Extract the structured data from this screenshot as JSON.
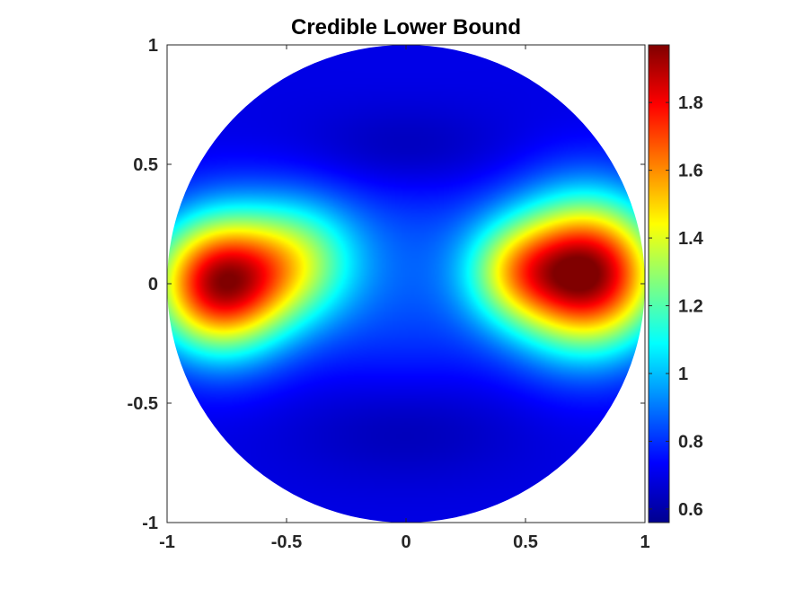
{
  "chart_data": {
    "type": "heatmap",
    "title": "Credible Lower Bound",
    "xlabel": "",
    "ylabel": "",
    "xlim": [
      -1,
      1
    ],
    "ylim": [
      -1,
      1
    ],
    "domain_shape": "unit-disk",
    "grid": false,
    "x_ticks": [
      -1,
      -0.5,
      0,
      0.5,
      1
    ],
    "y_ticks": [
      -1,
      -0.5,
      0,
      0.5,
      1
    ],
    "x_tick_labels": [
      "-1",
      "-0.5",
      "0",
      "0.5",
      "1"
    ],
    "y_tick_labels": [
      "-1",
      "-0.5",
      "0",
      "0.5",
      "1"
    ],
    "colormap": "jet",
    "colorbar": {
      "location": "right",
      "clim": [
        0.56,
        1.97
      ],
      "ticks": [
        0.6,
        0.8,
        1,
        1.2,
        1.4,
        1.6,
        1.8
      ],
      "tick_labels": [
        "0.6",
        "0.8",
        "1",
        "1.2",
        "1.4",
        "1.6",
        "1.8"
      ]
    },
    "background_level": 0.7,
    "features": [
      {
        "x": -0.78,
        "y": 0.0,
        "peak": 1.88,
        "spread": 0.2
      },
      {
        "x": 0.76,
        "y": 0.04,
        "peak": 1.96,
        "spread": 0.22
      },
      {
        "x": -0.45,
        "y": 0.1,
        "peak": 1.15,
        "spread": 0.18
      },
      {
        "x": 0.45,
        "y": 0.05,
        "peak": 1.1,
        "spread": 0.15
      },
      {
        "x": 0.0,
        "y": 0.05,
        "peak": 0.85,
        "spread": 0.35
      }
    ]
  }
}
